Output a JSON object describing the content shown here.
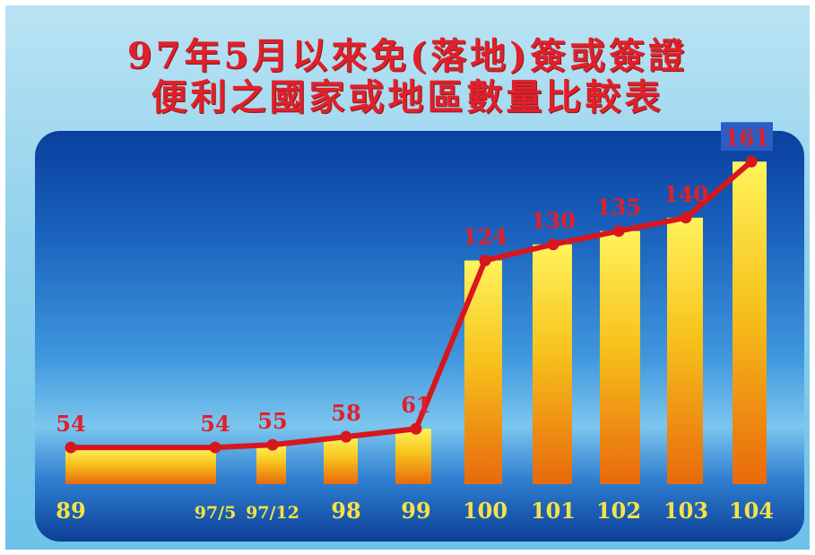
{
  "title_line1": "97年5月以來免(落地)簽或簽證",
  "title_line2": "便利之國家或地區數量比較表",
  "chart_data": {
    "type": "bar",
    "title": "97年5月以來免(落地)簽或簽證便利之國家或地區數量比較表",
    "categories": [
      "89",
      "97/5",
      "97/12",
      "98",
      "99",
      "100",
      "101",
      "102",
      "103",
      "104"
    ],
    "values": [
      54,
      54,
      55,
      58,
      61,
      124,
      130,
      135,
      140,
      161
    ],
    "series": [
      {
        "values": [
          54,
          54,
          55,
          58,
          61,
          124,
          130,
          135,
          140,
          161
        ]
      }
    ],
    "overlay": "line",
    "xlabel": "",
    "ylabel": "",
    "ylim": [
      0,
      180
    ],
    "grid": false,
    "legend": "none",
    "colors": {
      "bar_top": "#fff05a",
      "bar_bottom": "#e8700e",
      "line": "#d8161e",
      "value_label": "#e0202a",
      "category_label": "#f4e24a",
      "last_value_bg": "#2a5ec4"
    }
  }
}
